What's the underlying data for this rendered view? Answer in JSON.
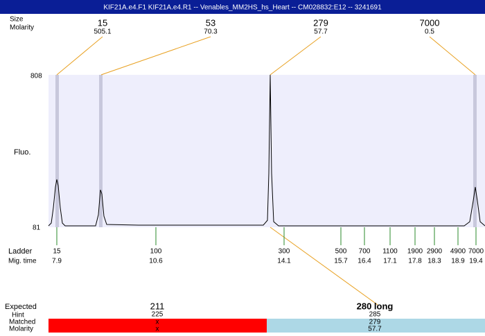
{
  "title": "KIF21A.e4.F1  KIF21A.e4.R1 -- Venables_MM2HS_hs_Heart -- CM028832:E12 -- 3241691",
  "row_labels": {
    "size": "Size",
    "molarity": "Molarity",
    "fluo": "Fluo.",
    "ladder": "Ladder",
    "mig_time": "Mig. time",
    "expected": "Expected",
    "hint": "Hint",
    "matched": "Matched",
    "molarity_bottom": "Molarity"
  },
  "y_axis": {
    "max": "808",
    "min": "81"
  },
  "peaks": [
    {
      "size": "15",
      "molarity": "505.1"
    },
    {
      "size": "53",
      "molarity": "70.3"
    },
    {
      "size": "279",
      "molarity": "57.7"
    },
    {
      "size": "7000",
      "molarity": "0.5"
    }
  ],
  "ladder": [
    {
      "size": "15",
      "mig_time": "7.9"
    },
    {
      "size": "100",
      "mig_time": "10.6"
    },
    {
      "size": "300",
      "mig_time": "14.1"
    },
    {
      "size": "500",
      "mig_time": "15.7"
    },
    {
      "size": "700",
      "mig_time": "16.4"
    },
    {
      "size": "1100",
      "mig_time": "17.1"
    },
    {
      "size": "1900",
      "mig_time": "17.8"
    },
    {
      "size": "2900",
      "mig_time": "18.3"
    },
    {
      "size": "4900",
      "mig_time": "18.9"
    },
    {
      "size": "7000",
      "mig_time": "19.4"
    }
  ],
  "expected": [
    {
      "expected": "211",
      "hint": "225",
      "matched": "x",
      "molarity": "x"
    },
    {
      "expected": "280 long",
      "hint": "285",
      "matched": "279",
      "molarity": "57.7"
    }
  ]
}
